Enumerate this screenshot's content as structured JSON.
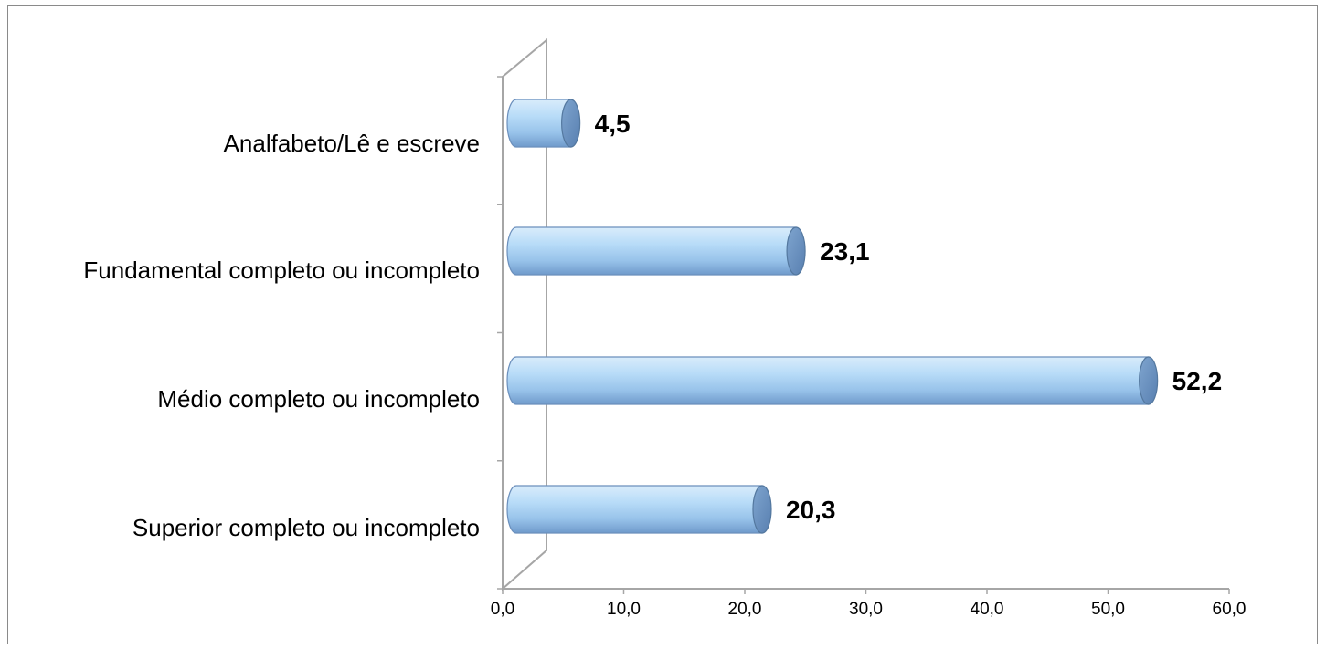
{
  "chart_data": {
    "type": "bar",
    "orientation": "horizontal",
    "style": "3d-cylinder",
    "categories": [
      "Analfabeto/Lê e escreve",
      "Fundamental completo ou incompleto",
      "Médio completo ou incompleto",
      "Superior completo ou incompleto"
    ],
    "values": [
      4.5,
      23.1,
      52.2,
      20.3
    ],
    "value_labels": [
      "4,5",
      "23,1",
      "52,2",
      "20,3"
    ],
    "xlim": [
      0,
      60
    ],
    "x_ticks": [
      0,
      10,
      20,
      30,
      40,
      50,
      60
    ],
    "x_tick_labels": [
      "0,0",
      "10,0",
      "20,0",
      "30,0",
      "40,0",
      "50,0",
      "60,0"
    ],
    "grid": false,
    "legend": "none",
    "colors": {
      "bar": "#9ec8ec",
      "bar_dark": "#5f88b8",
      "axis": "#a6a6a6"
    }
  }
}
